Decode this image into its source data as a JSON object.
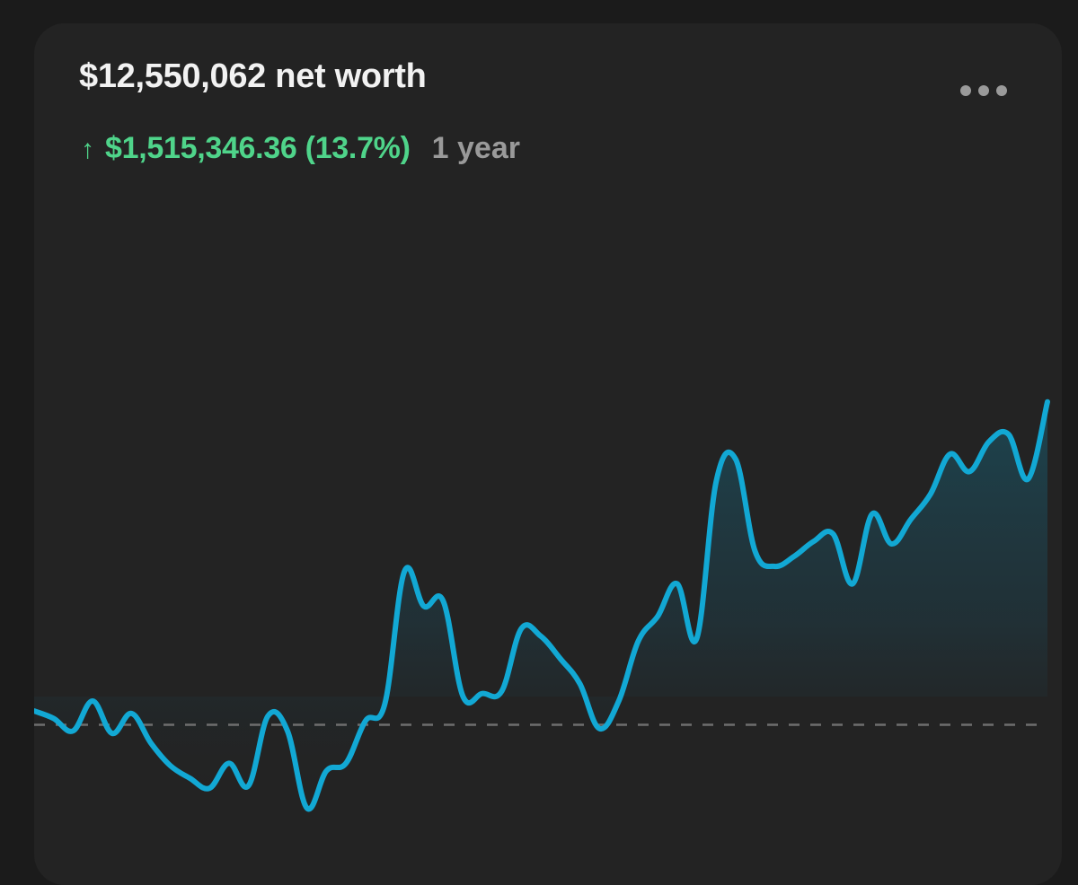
{
  "header": {
    "net_worth_title": "$12,550,062 net worth",
    "change_arrow": "↑",
    "change_text": "$1,515,346.36 (13.7%)",
    "period_label": "1 year",
    "more_icon": "more-horizontal-icon"
  },
  "colors": {
    "background": "#1b1b1b",
    "card": "#232323",
    "title": "#f2f2f2",
    "positive": "#4fd48a",
    "muted": "#9a9a9a",
    "line": "#12a8d4",
    "baseline": "#6e6e6e"
  },
  "chart_data": {
    "type": "line",
    "title": "",
    "xlabel": "",
    "ylabel": "",
    "grid": false,
    "baseline": 11034716,
    "ylim": [
      10500000,
      13200000
    ],
    "values": [
      11090000,
      11060000,
      11010000,
      11130000,
      11000000,
      11080000,
      10960000,
      10870000,
      10820000,
      10780000,
      10880000,
      10790000,
      11070000,
      11010000,
      10700000,
      10850000,
      10880000,
      11050000,
      11120000,
      11650000,
      11510000,
      11530000,
      11150000,
      11160000,
      11170000,
      11420000,
      11390000,
      11300000,
      11200000,
      11020000,
      11130000,
      11370000,
      11470000,
      11600000,
      11380000,
      12010000,
      12100000,
      11730000,
      11670000,
      11710000,
      11770000,
      11800000,
      11600000,
      11880000,
      11760000,
      11860000,
      11960000,
      12120000,
      12050000,
      12170000,
      12200000,
      12020000,
      12330000
    ]
  }
}
